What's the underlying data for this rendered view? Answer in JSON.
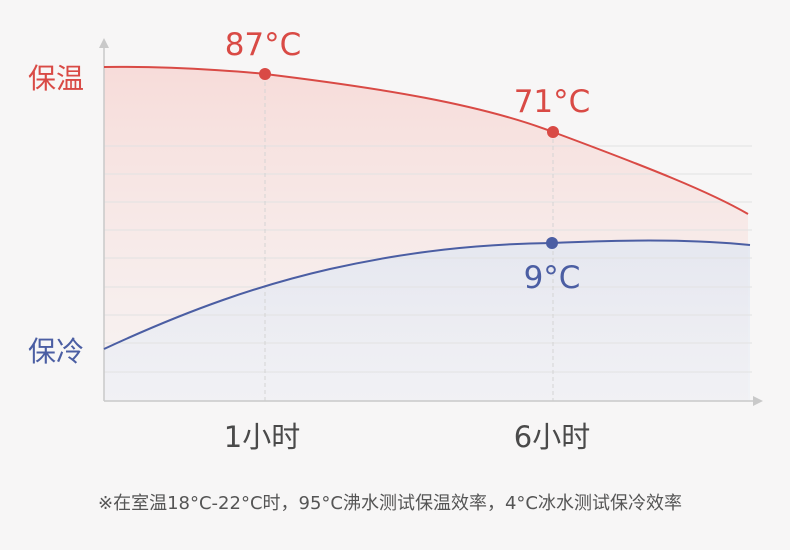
{
  "chart_data": {
    "type": "line",
    "title": "",
    "xlabel": "",
    "ylabel": "",
    "x_ticks": [
      "1小时",
      "6小时"
    ],
    "grid": true,
    "legend": "none",
    "series": [
      {
        "name": "保温",
        "color": "#d94a45",
        "points": [
          {
            "x_label": "1小时",
            "value": 87,
            "value_label": "87°C"
          },
          {
            "x_label": "6小时",
            "value": 71,
            "value_label": "71°C"
          }
        ]
      },
      {
        "name": "保冷",
        "color": "#4b5ea3",
        "points": [
          {
            "x_label": "6小时",
            "value": 9,
            "value_label": "9°C"
          }
        ]
      }
    ]
  },
  "footnote": "※在室温18°C-22°C时，95°C沸水测试保温效率，4°C冰水测试保冷效率"
}
